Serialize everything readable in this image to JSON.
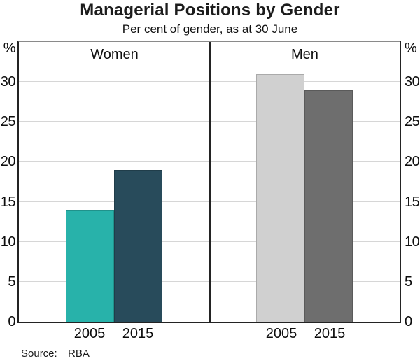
{
  "title": "Managerial Positions by Gender",
  "subtitle": "Per cent of gender, as at 30 June",
  "source": {
    "label": "Source:",
    "value": "RBA"
  },
  "chart_data": {
    "type": "bar",
    "title": "Managerial Positions by Gender",
    "subtitle": "Per cent of gender, as at 30 June",
    "unit": "%",
    "ylim": [
      0,
      35
    ],
    "yticks": [
      0,
      5,
      10,
      15,
      20,
      25,
      30
    ],
    "grid": true,
    "legend": "none",
    "categories": [
      "2005",
      "2015"
    ],
    "panels": [
      {
        "label": "Women",
        "series": [
          {
            "name": "2005",
            "value": 14,
            "color": "#28b2aa"
          },
          {
            "name": "2015",
            "value": 19,
            "color": "#284b5b"
          }
        ]
      },
      {
        "label": "Men",
        "series": [
          {
            "name": "2005",
            "value": 31,
            "color": "#d0d0d0"
          },
          {
            "name": "2015",
            "value": 29,
            "color": "#6e6e6e"
          }
        ]
      }
    ],
    "source": "RBA"
  },
  "colors": {
    "axis_frame": "#232323",
    "frame_top": "#8a8a8a",
    "gridline": "#d6d6d6",
    "women_2005": "#28b2aa",
    "women_2015": "#284b5b",
    "men_2005": "#d0d0d0",
    "men_2015": "#6e6e6e",
    "text": "#111111"
  }
}
